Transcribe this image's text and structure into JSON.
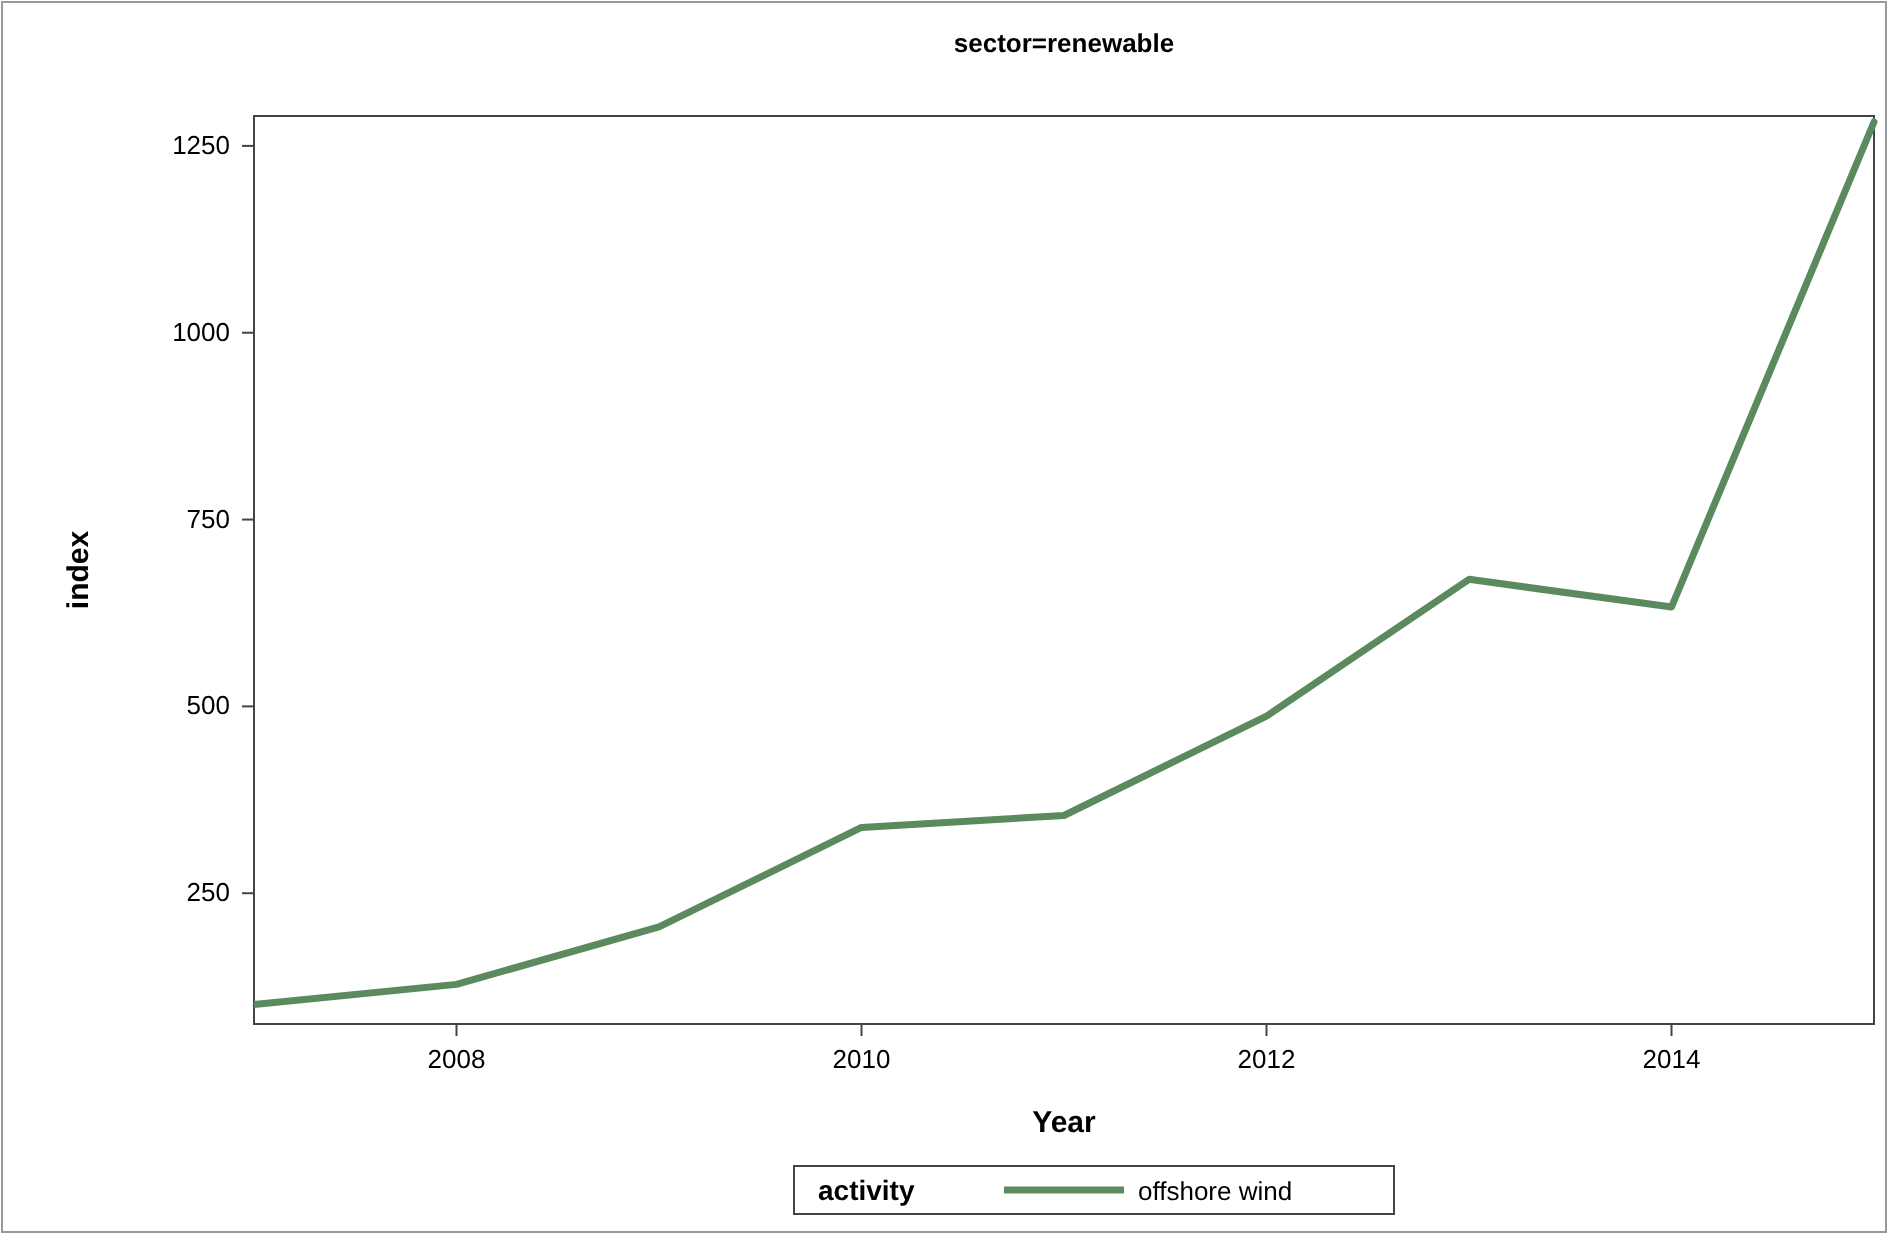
{
  "chart_data": {
    "type": "line",
    "title": "sector=renewable",
    "xlabel": "Year",
    "ylabel": "index",
    "legend_title": "activity",
    "x": [
      2007,
      2008,
      2009,
      2010,
      2011,
      2012,
      2013,
      2014,
      2015
    ],
    "series": [
      {
        "name": "offshore wind",
        "color": "#5b8a5e",
        "values": [
          101,
          128,
          205,
          338,
          354,
          487,
          670,
          633,
          1282
        ]
      }
    ],
    "xlim": [
      2007,
      2015
    ],
    "xticks": [
      2008,
      2010,
      2012,
      2014
    ],
    "ylim": [
      75,
      1290
    ],
    "yticks": [
      250,
      500,
      750,
      1000,
      1250
    ],
    "grid": false,
    "legend": "bottom",
    "marker": "none",
    "line_style": "solid"
  }
}
